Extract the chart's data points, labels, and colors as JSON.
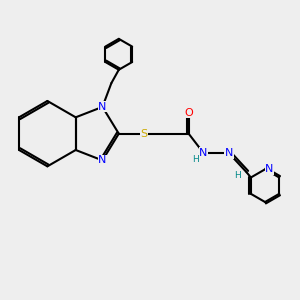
{
  "background_color": "#eeeeee",
  "figsize": [
    3.0,
    3.0
  ],
  "dpi": 100,
  "atom_colors": {
    "C": "#000000",
    "N": "#0000ff",
    "S": "#ccaa00",
    "O": "#ff0000",
    "H": "#008888"
  },
  "bond_color": "#000000",
  "bond_width": 1.5,
  "font_size_atoms": 8,
  "font_size_H": 6.5,
  "xlim": [
    0,
    10
  ],
  "ylim": [
    0,
    10
  ]
}
